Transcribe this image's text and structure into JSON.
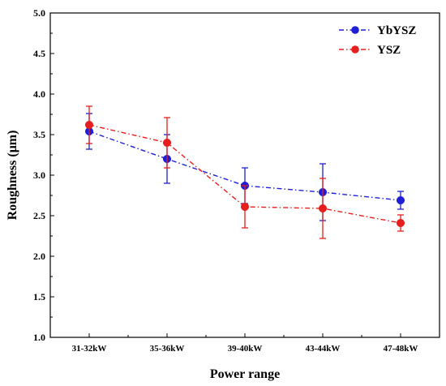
{
  "chart_data": {
    "type": "line",
    "title": "",
    "xlabel": "Power range",
    "ylabel": "Roughness (μm)",
    "categories": [
      "31-32kW",
      "35-36kW",
      "39-40kW",
      "43-44kW",
      "47-48kW"
    ],
    "ylim": [
      1.0,
      5.0
    ],
    "yticks": [
      "1.0",
      "1.5",
      "2.0",
      "2.5",
      "3.0",
      "3.5",
      "4.0",
      "4.5",
      "5.0"
    ],
    "legend_position": "top-right",
    "grid": false,
    "series": [
      {
        "name": "YbYSZ",
        "color": "#1f1fd6",
        "line_style": "dash-dot",
        "values": [
          3.54,
          3.2,
          2.87,
          2.79,
          2.69
        ],
        "error": [
          0.22,
          0.3,
          0.22,
          0.35,
          0.11
        ]
      },
      {
        "name": "YSZ",
        "color": "#e61e1e",
        "line_style": "dash-dot",
        "values": [
          3.62,
          3.4,
          2.61,
          2.59,
          2.41
        ],
        "error": [
          0.23,
          0.31,
          0.26,
          0.37,
          0.1
        ]
      }
    ]
  }
}
